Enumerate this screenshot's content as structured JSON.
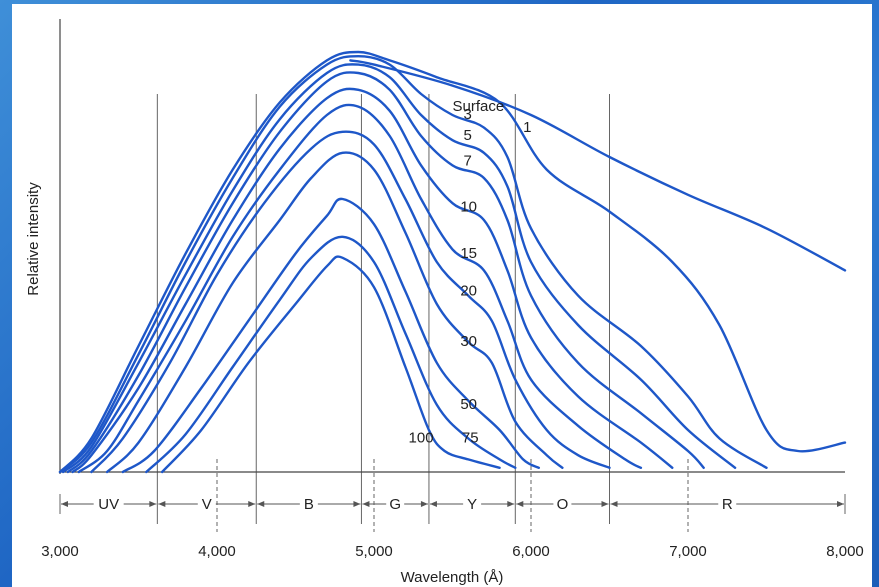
{
  "chart_data": {
    "type": "line",
    "xlabel": "Wavelength (Å)",
    "ylabel": "Relative intensity",
    "xlim": [
      3000,
      8000
    ],
    "ylim": [
      0,
      100
    ],
    "x_ticks": [
      {
        "value": 3000,
        "label": "3,000"
      },
      {
        "value": 4000,
        "label": "4,000"
      },
      {
        "value": 5000,
        "label": "5,000"
      },
      {
        "value": 6000,
        "label": "6,000"
      },
      {
        "value": 7000,
        "label": "7,000"
      },
      {
        "value": 8000,
        "label": "8,000"
      }
    ],
    "color_bands": [
      {
        "label": "UV",
        "start": 3000,
        "end": 3620
      },
      {
        "label": "V",
        "start": 3620,
        "end": 4250
      },
      {
        "label": "B",
        "start": 4250,
        "end": 4920
      },
      {
        "label": "G",
        "start": 4920,
        "end": 5350
      },
      {
        "label": "Y",
        "start": 5350,
        "end": 5900
      },
      {
        "label": "O",
        "start": 5900,
        "end": 6500
      },
      {
        "label": "R",
        "start": 6500,
        "end": 8000
      }
    ],
    "solid_dividers": [
      3620,
      4250,
      4920,
      5350,
      5900,
      6500
    ],
    "dashed_dividers": [
      4000,
      5000,
      6000,
      7000
    ],
    "series": [
      {
        "name": "Surface",
        "label_at": [
          5500,
          86
        ],
        "points": [
          [
            4850,
            98
          ],
          [
            5000,
            97
          ],
          [
            5500,
            92
          ],
          [
            6000,
            85
          ],
          [
            6500,
            75
          ],
          [
            7000,
            66
          ],
          [
            7500,
            58
          ],
          [
            8000,
            48
          ]
        ]
      },
      {
        "name": "1",
        "label_at": [
          5950,
          81
        ],
        "points": [
          [
            3000,
            0
          ],
          [
            3200,
            8
          ],
          [
            3500,
            30
          ],
          [
            3800,
            52
          ],
          [
            4100,
            72
          ],
          [
            4400,
            88
          ],
          [
            4700,
            98
          ],
          [
            4900,
            100
          ],
          [
            5100,
            98
          ],
          [
            5400,
            94
          ],
          [
            5800,
            88
          ],
          [
            6100,
            72
          ],
          [
            6500,
            62
          ],
          [
            6900,
            50
          ],
          [
            7200,
            35
          ],
          [
            7500,
            10
          ],
          [
            7700,
            5
          ],
          [
            8000,
            7
          ]
        ]
      },
      {
        "name": "3",
        "label_at": [
          5570,
          84
        ],
        "points": [
          [
            3000,
            0
          ],
          [
            3200,
            7
          ],
          [
            3500,
            28
          ],
          [
            3800,
            50
          ],
          [
            4100,
            70
          ],
          [
            4400,
            87
          ],
          [
            4700,
            97
          ],
          [
            4900,
            99
          ],
          [
            5100,
            97
          ],
          [
            5300,
            90
          ],
          [
            5500,
            85
          ],
          [
            5700,
            82
          ],
          [
            5850,
            75
          ],
          [
            6000,
            58
          ],
          [
            6300,
            42
          ],
          [
            6700,
            30
          ],
          [
            7000,
            18
          ],
          [
            7200,
            8
          ],
          [
            7500,
            1
          ]
        ]
      },
      {
        "name": "5",
        "label_at": [
          5570,
          79
        ],
        "points": [
          [
            3020,
            0
          ],
          [
            3200,
            6
          ],
          [
            3500,
            26
          ],
          [
            3800,
            47
          ],
          [
            4100,
            67
          ],
          [
            4400,
            84
          ],
          [
            4700,
            95
          ],
          [
            4900,
            97
          ],
          [
            5100,
            94
          ],
          [
            5300,
            85
          ],
          [
            5500,
            79
          ],
          [
            5700,
            76
          ],
          [
            5850,
            68
          ],
          [
            6000,
            50
          ],
          [
            6300,
            35
          ],
          [
            6700,
            22
          ],
          [
            7000,
            10
          ],
          [
            7300,
            1
          ]
        ]
      },
      {
        "name": "7",
        "label_at": [
          5570,
          73
        ],
        "points": [
          [
            3050,
            0
          ],
          [
            3200,
            5
          ],
          [
            3500,
            23
          ],
          [
            3800,
            44
          ],
          [
            4100,
            64
          ],
          [
            4400,
            81
          ],
          [
            4700,
            93
          ],
          [
            4900,
            95
          ],
          [
            5100,
            91
          ],
          [
            5300,
            80
          ],
          [
            5500,
            73
          ],
          [
            5700,
            70
          ],
          [
            5850,
            60
          ],
          [
            6000,
            42
          ],
          [
            6300,
            26
          ],
          [
            6700,
            14
          ],
          [
            7000,
            5
          ],
          [
            7100,
            1
          ]
        ]
      },
      {
        "name": "10",
        "label_at": [
          5550,
          62
        ],
        "points": [
          [
            3080,
            0
          ],
          [
            3200,
            4
          ],
          [
            3500,
            20
          ],
          [
            3800,
            40
          ],
          [
            4100,
            60
          ],
          [
            4400,
            77
          ],
          [
            4700,
            89
          ],
          [
            4900,
            91
          ],
          [
            5100,
            86
          ],
          [
            5300,
            73
          ],
          [
            5500,
            64
          ],
          [
            5700,
            60
          ],
          [
            5850,
            48
          ],
          [
            6000,
            32
          ],
          [
            6300,
            18
          ],
          [
            6700,
            7
          ],
          [
            6900,
            1
          ]
        ]
      },
      {
        "name": "15",
        "label_at": [
          5550,
          51
        ],
        "points": [
          [
            3120,
            0
          ],
          [
            3300,
            5
          ],
          [
            3500,
            17
          ],
          [
            3800,
            36
          ],
          [
            4100,
            56
          ],
          [
            4400,
            72
          ],
          [
            4700,
            85
          ],
          [
            4900,
            87
          ],
          [
            5100,
            80
          ],
          [
            5300,
            65
          ],
          [
            5500,
            53
          ],
          [
            5700,
            48
          ],
          [
            5850,
            36
          ],
          [
            6000,
            22
          ],
          [
            6300,
            11
          ],
          [
            6600,
            3
          ],
          [
            6700,
            1
          ]
        ]
      },
      {
        "name": "20",
        "label_at": [
          5550,
          42
        ],
        "points": [
          [
            3200,
            0
          ],
          [
            3400,
            8
          ],
          [
            3700,
            26
          ],
          [
            4000,
            47
          ],
          [
            4300,
            64
          ],
          [
            4600,
            77
          ],
          [
            4800,
            81
          ],
          [
            5000,
            78
          ],
          [
            5200,
            65
          ],
          [
            5400,
            50
          ],
          [
            5600,
            42
          ],
          [
            5750,
            36
          ],
          [
            5900,
            22
          ],
          [
            6100,
            10
          ],
          [
            6300,
            4
          ],
          [
            6500,
            1
          ]
        ]
      },
      {
        "name": "30",
        "label_at": [
          5550,
          30
        ],
        "points": [
          [
            3300,
            0
          ],
          [
            3500,
            7
          ],
          [
            3800,
            25
          ],
          [
            4100,
            45
          ],
          [
            4400,
            60
          ],
          [
            4600,
            70
          ],
          [
            4800,
            76
          ],
          [
            5000,
            72
          ],
          [
            5200,
            57
          ],
          [
            5400,
            40
          ],
          [
            5600,
            31
          ],
          [
            5750,
            26
          ],
          [
            5900,
            12
          ],
          [
            6100,
            4
          ],
          [
            6200,
            1
          ]
        ]
      },
      {
        "name": "50",
        "label_at": [
          5550,
          15
        ],
        "points": [
          [
            3400,
            0
          ],
          [
            3600,
            5
          ],
          [
            3900,
            20
          ],
          [
            4200,
            36
          ],
          [
            4500,
            52
          ],
          [
            4700,
            61
          ],
          [
            4800,
            65
          ],
          [
            5000,
            59
          ],
          [
            5200,
            43
          ],
          [
            5400,
            26
          ],
          [
            5600,
            17
          ],
          [
            5800,
            10
          ],
          [
            5950,
            3
          ],
          [
            6050,
            1
          ]
        ]
      },
      {
        "name": "75",
        "label_at": [
          5560,
          7
        ],
        "points": [
          [
            3550,
            0
          ],
          [
            3800,
            9
          ],
          [
            4100,
            25
          ],
          [
            4400,
            41
          ],
          [
            4600,
            51
          ],
          [
            4800,
            56
          ],
          [
            5000,
            50
          ],
          [
            5200,
            33
          ],
          [
            5400,
            16
          ],
          [
            5600,
            8
          ],
          [
            5800,
            3
          ],
          [
            5900,
            1
          ]
        ]
      },
      {
        "name": "100",
        "label_at": [
          5220,
          7
        ],
        "points": [
          [
            3650,
            0
          ],
          [
            3900,
            10
          ],
          [
            4200,
            26
          ],
          [
            4500,
            40
          ],
          [
            4700,
            49
          ],
          [
            4800,
            51
          ],
          [
            5000,
            44
          ],
          [
            5200,
            25
          ],
          [
            5350,
            10
          ],
          [
            5450,
            5
          ],
          [
            5600,
            3
          ],
          [
            5800,
            1
          ]
        ]
      }
    ]
  }
}
